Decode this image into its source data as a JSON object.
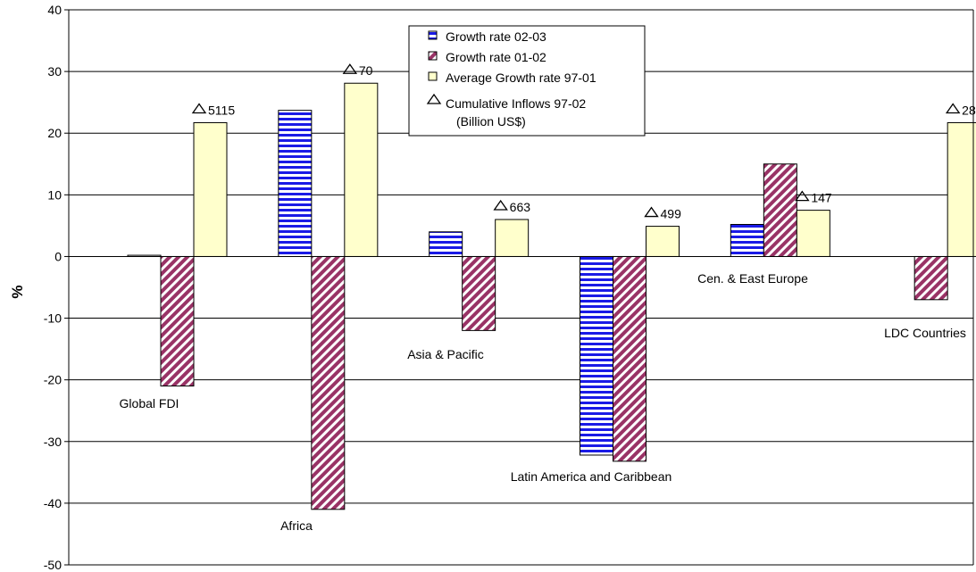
{
  "chart_data": {
    "type": "bar",
    "title": "",
    "xlabel": "",
    "ylabel": "%",
    "ylim": [
      -50,
      40
    ],
    "y_ticks": [
      40,
      30,
      20,
      10,
      0,
      -10,
      -20,
      -30,
      -40,
      -50
    ],
    "grid": true,
    "legend_position": "top-center",
    "categories": [
      "Global FDI",
      "Africa",
      "Asia & Pacific",
      "Latin America and Caribbean",
      "Cen. & East Europe",
      "LDC Countries"
    ],
    "series": [
      {
        "name": "Growth rate 02-03",
        "values": [
          0.2,
          23.7,
          4.0,
          -32.2,
          5.2,
          null
        ],
        "color": "#1a1ae6",
        "pattern": "horizontal-stripes"
      },
      {
        "name": "Growth rate 01-02",
        "values": [
          -21.0,
          -41.0,
          -12.0,
          -33.2,
          15.0,
          -7.0
        ],
        "color": "#993366",
        "pattern": "diagonal-stripes"
      },
      {
        "name": "Average Growth rate 97-01",
        "values": [
          21.7,
          28.1,
          6.0,
          4.9,
          7.5,
          21.7
        ],
        "color": "#ffffcc",
        "pattern": "solid"
      }
    ],
    "markers": {
      "name": "Cumulative Inflows 97-02",
      "name_line2": "(Billion US$)",
      "symbol": "triangle",
      "labels": [
        "5115",
        "70",
        "663",
        "499",
        "147",
        "28"
      ]
    }
  }
}
